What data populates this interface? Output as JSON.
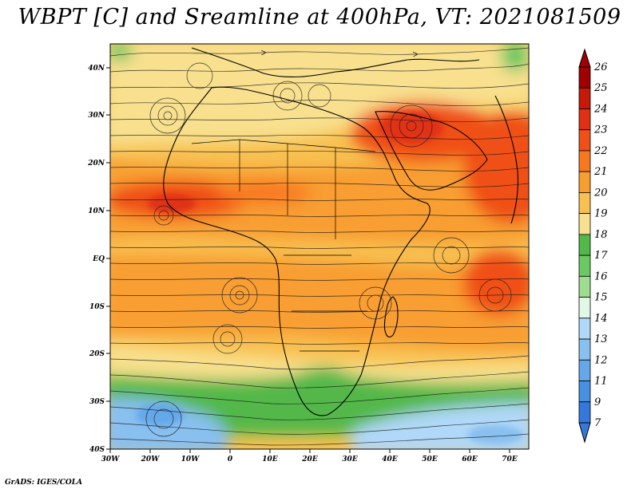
{
  "title": "WBPT [C] and Sreamline at 400hPa, VT: 2021081509",
  "credit": "GrADS: IGES/COLA",
  "map": {
    "lon_labels": [
      "30W",
      "20W",
      "10W",
      "0",
      "10E",
      "20E",
      "30E",
      "40E",
      "50E",
      "60E",
      "70E"
    ],
    "lat_labels": [
      "40N",
      "30N",
      "20N",
      "10N",
      "EQ",
      "10S",
      "20S",
      "30S",
      "40S"
    ]
  },
  "colorbar": {
    "labels": [
      "26",
      "25",
      "24",
      "23",
      "22",
      "21",
      "20",
      "19",
      "18",
      "17",
      "16",
      "15",
      "14",
      "13",
      "12",
      "11",
      "9",
      "7"
    ],
    "colors": [
      "#a00000",
      "#c81808",
      "#e03212",
      "#f05018",
      "#f87820",
      "#f89e30",
      "#f8c050",
      "#f8e08e",
      "#52b848",
      "#6cc862",
      "#9edc90",
      "#e2f8e6",
      "#b0d8f8",
      "#88c0f0",
      "#64a8ea",
      "#4890e2",
      "#3478dc"
    ]
  },
  "chart_data": {
    "type": "heatmap",
    "variable": "WBPT [C]",
    "level": "400hPa",
    "valid_time": "2021081509",
    "lon_range": [
      "30W",
      "75E"
    ],
    "lat_range": [
      "40S",
      "45N"
    ],
    "scale": [
      7,
      9,
      11,
      12,
      13,
      14,
      15,
      16,
      17,
      18,
      19,
      20,
      21,
      22,
      23,
      24,
      25,
      26
    ],
    "regions": [
      {
        "name": "high-arabia",
        "approx_value": 23
      },
      {
        "name": "high-sahel-band",
        "approx_value": 22
      },
      {
        "name": "high-arabian-sea",
        "approx_value": 23
      },
      {
        "name": "high-indian-ocean-south",
        "approx_value": 22
      },
      {
        "name": "mid-atlantic",
        "approx_value": 20
      },
      {
        "name": "low-south-atlantic",
        "approx_value": 13
      },
      {
        "name": "low-south-indian",
        "approx_value": 14
      },
      {
        "name": "band-southern-africa",
        "approx_value": 17
      }
    ]
  }
}
